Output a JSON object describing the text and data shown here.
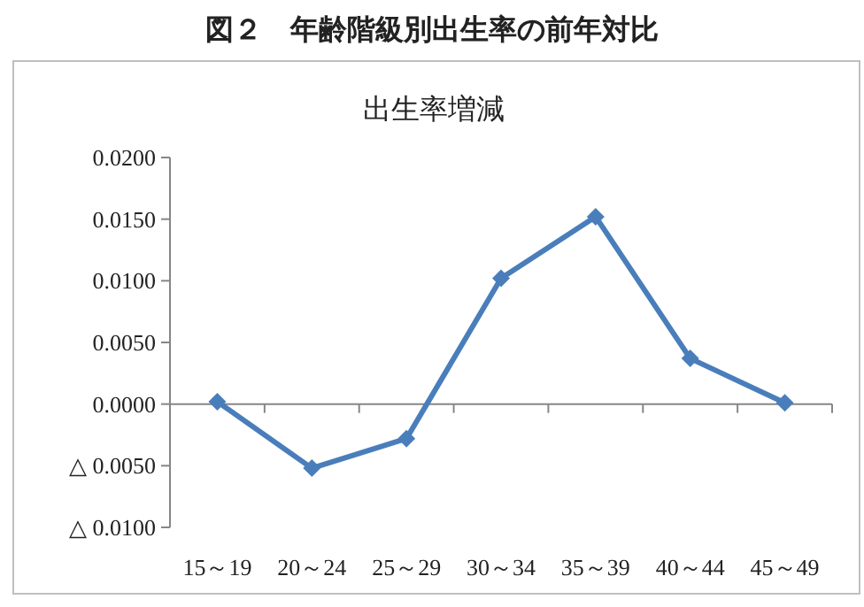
{
  "chart_data": {
    "type": "line",
    "title": "出生率増減",
    "annotations": [
      "図２　年齢階級別出生率の前年対比"
    ],
    "categories": [
      "15～19",
      "20～24",
      "25～29",
      "30～34",
      "35～39",
      "40～44",
      "45～49"
    ],
    "values": [
      0.0002,
      -0.0052,
      -0.0028,
      0.0102,
      0.0152,
      0.0037,
      0.0001
    ],
    "color": "#4a7ebb",
    "marker": "diamond",
    "line_style": "solid",
    "ylim": [
      -0.01,
      0.02
    ],
    "yticks": [
      {
        "value": -0.01,
        "label": "△ 0.0100"
      },
      {
        "value": -0.005,
        "label": "△ 0.0050"
      },
      {
        "value": 0,
        "label": "0.0000"
      },
      {
        "value": 0.005,
        "label": "0.0050"
      },
      {
        "value": 0.01,
        "label": "0.0100"
      },
      {
        "value": 0.015,
        "label": "0.0150"
      },
      {
        "value": 0.02,
        "label": "0.0200"
      }
    ]
  }
}
